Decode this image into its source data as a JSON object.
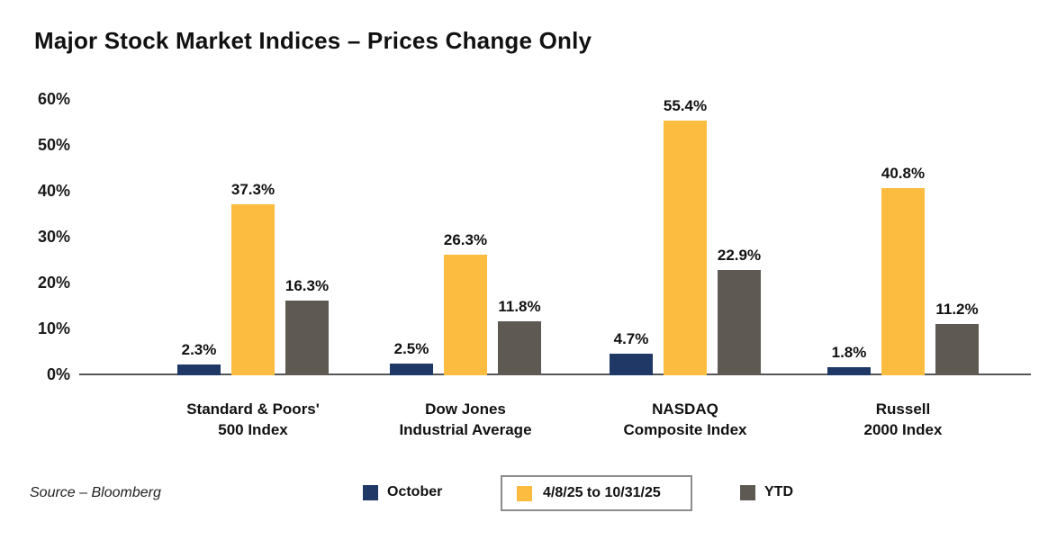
{
  "title": "Major Stock Market Indices – Prices Change Only",
  "source": "Source – Bloomberg",
  "colors": {
    "october": "#1F3866",
    "period": "#FBBC3F",
    "ytd": "#5E5A53",
    "axis_line": "#55565A",
    "text": "#111111",
    "legend_box_border": "#8C8C8C"
  },
  "legend": [
    {
      "label": "October",
      "color": "#1F3866",
      "boxed": false
    },
    {
      "label": "4/8/25 to 10/31/25",
      "color": "#FBBC3F",
      "boxed": true
    },
    {
      "label": "YTD",
      "color": "#5E5A53",
      "boxed": false
    }
  ],
  "chart_data": {
    "type": "bar",
    "title": "Major Stock Market Indices – Prices Change Only",
    "categories": [
      [
        "Standard & Poors'",
        "500 Index"
      ],
      [
        "Dow Jones",
        "Industrial Average"
      ],
      [
        "NASDAQ",
        "Composite Index"
      ],
      [
        "Russell",
        "2000 Index"
      ]
    ],
    "series": [
      {
        "name": "October",
        "color": "#1F3866",
        "values": [
          2.3,
          2.5,
          4.7,
          1.8
        ],
        "labels": [
          "2.3%",
          "2.5%",
          "4.7%",
          "1.8%"
        ]
      },
      {
        "name": "4/8/25 to 10/31/25",
        "color": "#FBBC3F",
        "values": [
          37.3,
          26.3,
          55.4,
          40.8
        ],
        "labels": [
          "37.3%",
          "26.3%",
          "55.4%",
          "40.8%"
        ]
      },
      {
        "name": "YTD",
        "color": "#5E5A53",
        "values": [
          16.3,
          11.8,
          22.9,
          11.2
        ],
        "labels": [
          "16.3%",
          "11.8%",
          "22.9%",
          "11.2%"
        ]
      }
    ],
    "y_ticks": [
      0,
      10,
      20,
      30,
      40,
      50,
      60
    ],
    "y_tick_suffix": "%",
    "ylim": [
      0,
      62
    ],
    "xlabel": "",
    "ylabel": "",
    "grid": false,
    "value_labels_shown": true,
    "legend_position": "bottom"
  }
}
